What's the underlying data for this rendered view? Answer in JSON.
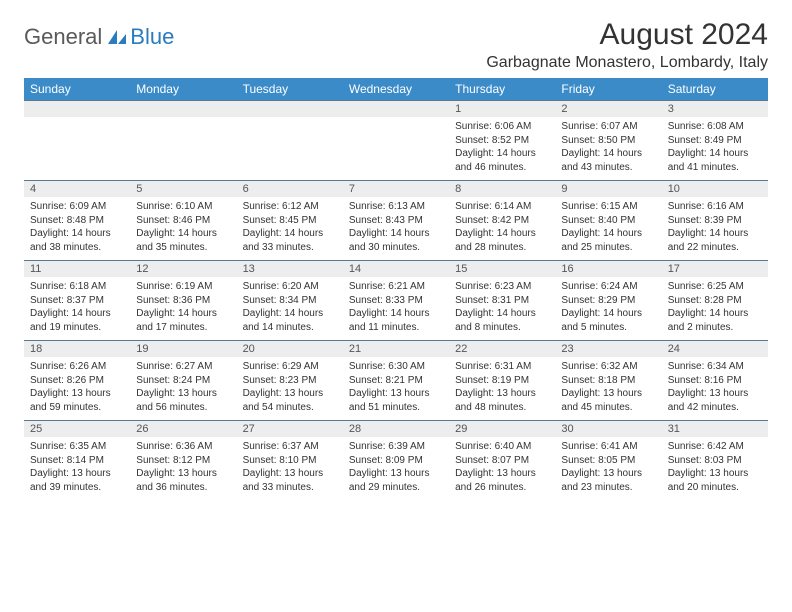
{
  "logo": {
    "text_general": "General",
    "text_blue": "Blue"
  },
  "title": "August 2024",
  "subtitle": "Garbagnate Monastero, Lombardy, Italy",
  "colors": {
    "header_bg": "#3b8bc9",
    "header_text": "#ffffff",
    "daynum_bg": "#ededed",
    "row_border": "#5a7a9a",
    "logo_gray": "#5a5a5a",
    "logo_blue": "#2b7bbf"
  },
  "day_headers": [
    "Sunday",
    "Monday",
    "Tuesday",
    "Wednesday",
    "Thursday",
    "Friday",
    "Saturday"
  ],
  "weeks": [
    [
      {
        "n": "",
        "sr": "",
        "ss": "",
        "dl": ""
      },
      {
        "n": "",
        "sr": "",
        "ss": "",
        "dl": ""
      },
      {
        "n": "",
        "sr": "",
        "ss": "",
        "dl": ""
      },
      {
        "n": "",
        "sr": "",
        "ss": "",
        "dl": ""
      },
      {
        "n": "1",
        "sr": "Sunrise: 6:06 AM",
        "ss": "Sunset: 8:52 PM",
        "dl": "Daylight: 14 hours and 46 minutes."
      },
      {
        "n": "2",
        "sr": "Sunrise: 6:07 AM",
        "ss": "Sunset: 8:50 PM",
        "dl": "Daylight: 14 hours and 43 minutes."
      },
      {
        "n": "3",
        "sr": "Sunrise: 6:08 AM",
        "ss": "Sunset: 8:49 PM",
        "dl": "Daylight: 14 hours and 41 minutes."
      }
    ],
    [
      {
        "n": "4",
        "sr": "Sunrise: 6:09 AM",
        "ss": "Sunset: 8:48 PM",
        "dl": "Daylight: 14 hours and 38 minutes."
      },
      {
        "n": "5",
        "sr": "Sunrise: 6:10 AM",
        "ss": "Sunset: 8:46 PM",
        "dl": "Daylight: 14 hours and 35 minutes."
      },
      {
        "n": "6",
        "sr": "Sunrise: 6:12 AM",
        "ss": "Sunset: 8:45 PM",
        "dl": "Daylight: 14 hours and 33 minutes."
      },
      {
        "n": "7",
        "sr": "Sunrise: 6:13 AM",
        "ss": "Sunset: 8:43 PM",
        "dl": "Daylight: 14 hours and 30 minutes."
      },
      {
        "n": "8",
        "sr": "Sunrise: 6:14 AM",
        "ss": "Sunset: 8:42 PM",
        "dl": "Daylight: 14 hours and 28 minutes."
      },
      {
        "n": "9",
        "sr": "Sunrise: 6:15 AM",
        "ss": "Sunset: 8:40 PM",
        "dl": "Daylight: 14 hours and 25 minutes."
      },
      {
        "n": "10",
        "sr": "Sunrise: 6:16 AM",
        "ss": "Sunset: 8:39 PM",
        "dl": "Daylight: 14 hours and 22 minutes."
      }
    ],
    [
      {
        "n": "11",
        "sr": "Sunrise: 6:18 AM",
        "ss": "Sunset: 8:37 PM",
        "dl": "Daylight: 14 hours and 19 minutes."
      },
      {
        "n": "12",
        "sr": "Sunrise: 6:19 AM",
        "ss": "Sunset: 8:36 PM",
        "dl": "Daylight: 14 hours and 17 minutes."
      },
      {
        "n": "13",
        "sr": "Sunrise: 6:20 AM",
        "ss": "Sunset: 8:34 PM",
        "dl": "Daylight: 14 hours and 14 minutes."
      },
      {
        "n": "14",
        "sr": "Sunrise: 6:21 AM",
        "ss": "Sunset: 8:33 PM",
        "dl": "Daylight: 14 hours and 11 minutes."
      },
      {
        "n": "15",
        "sr": "Sunrise: 6:23 AM",
        "ss": "Sunset: 8:31 PM",
        "dl": "Daylight: 14 hours and 8 minutes."
      },
      {
        "n": "16",
        "sr": "Sunrise: 6:24 AM",
        "ss": "Sunset: 8:29 PM",
        "dl": "Daylight: 14 hours and 5 minutes."
      },
      {
        "n": "17",
        "sr": "Sunrise: 6:25 AM",
        "ss": "Sunset: 8:28 PM",
        "dl": "Daylight: 14 hours and 2 minutes."
      }
    ],
    [
      {
        "n": "18",
        "sr": "Sunrise: 6:26 AM",
        "ss": "Sunset: 8:26 PM",
        "dl": "Daylight: 13 hours and 59 minutes."
      },
      {
        "n": "19",
        "sr": "Sunrise: 6:27 AM",
        "ss": "Sunset: 8:24 PM",
        "dl": "Daylight: 13 hours and 56 minutes."
      },
      {
        "n": "20",
        "sr": "Sunrise: 6:29 AM",
        "ss": "Sunset: 8:23 PM",
        "dl": "Daylight: 13 hours and 54 minutes."
      },
      {
        "n": "21",
        "sr": "Sunrise: 6:30 AM",
        "ss": "Sunset: 8:21 PM",
        "dl": "Daylight: 13 hours and 51 minutes."
      },
      {
        "n": "22",
        "sr": "Sunrise: 6:31 AM",
        "ss": "Sunset: 8:19 PM",
        "dl": "Daylight: 13 hours and 48 minutes."
      },
      {
        "n": "23",
        "sr": "Sunrise: 6:32 AM",
        "ss": "Sunset: 8:18 PM",
        "dl": "Daylight: 13 hours and 45 minutes."
      },
      {
        "n": "24",
        "sr": "Sunrise: 6:34 AM",
        "ss": "Sunset: 8:16 PM",
        "dl": "Daylight: 13 hours and 42 minutes."
      }
    ],
    [
      {
        "n": "25",
        "sr": "Sunrise: 6:35 AM",
        "ss": "Sunset: 8:14 PM",
        "dl": "Daylight: 13 hours and 39 minutes."
      },
      {
        "n": "26",
        "sr": "Sunrise: 6:36 AM",
        "ss": "Sunset: 8:12 PM",
        "dl": "Daylight: 13 hours and 36 minutes."
      },
      {
        "n": "27",
        "sr": "Sunrise: 6:37 AM",
        "ss": "Sunset: 8:10 PM",
        "dl": "Daylight: 13 hours and 33 minutes."
      },
      {
        "n": "28",
        "sr": "Sunrise: 6:39 AM",
        "ss": "Sunset: 8:09 PM",
        "dl": "Daylight: 13 hours and 29 minutes."
      },
      {
        "n": "29",
        "sr": "Sunrise: 6:40 AM",
        "ss": "Sunset: 8:07 PM",
        "dl": "Daylight: 13 hours and 26 minutes."
      },
      {
        "n": "30",
        "sr": "Sunrise: 6:41 AM",
        "ss": "Sunset: 8:05 PM",
        "dl": "Daylight: 13 hours and 23 minutes."
      },
      {
        "n": "31",
        "sr": "Sunrise: 6:42 AM",
        "ss": "Sunset: 8:03 PM",
        "dl": "Daylight: 13 hours and 20 minutes."
      }
    ]
  ]
}
